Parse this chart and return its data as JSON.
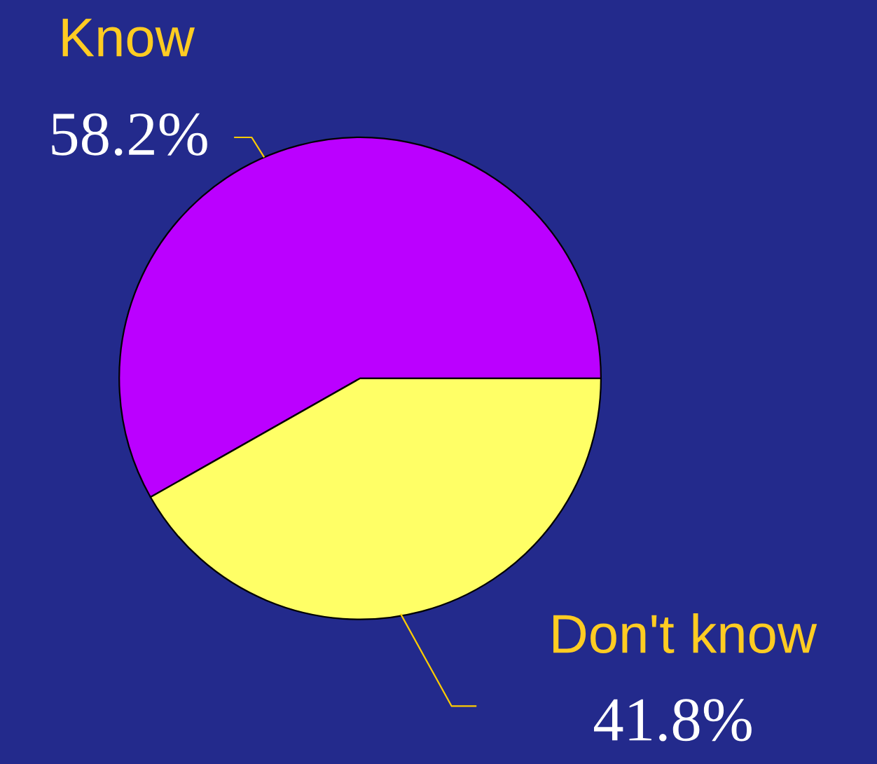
{
  "chart_data": {
    "type": "pie",
    "categories": [
      "Know",
      "Don't know"
    ],
    "values": [
      58.2,
      41.8
    ],
    "colors": [
      "#bb00ff",
      "#ffff66"
    ],
    "value_labels": [
      "58.2%",
      "41.8%"
    ],
    "legend": false
  }
}
